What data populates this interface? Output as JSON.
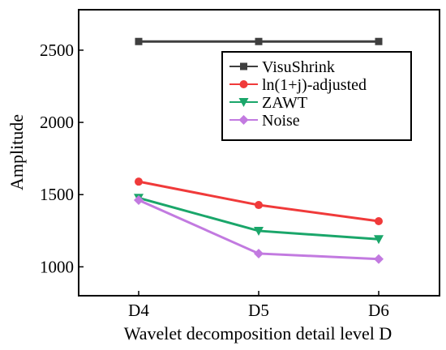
{
  "chart_data": {
    "type": "line",
    "title": "",
    "xlabel": "Wavelet decomposition detail level  D",
    "ylabel": "Amplitude",
    "categories": [
      "D4",
      "D5",
      "D6"
    ],
    "ylim": [
      800,
      2780
    ],
    "yticks": [
      1000,
      1500,
      2000,
      2500
    ],
    "grid": false,
    "legend_position": "top-right",
    "series": [
      {
        "name": "VisuShrink",
        "values": [
          2560,
          2560,
          2560
        ],
        "color": "#3f3f3f",
        "marker": "square"
      },
      {
        "name": "ln(1+j)-adjusted",
        "values": [
          1590,
          1428,
          1316
        ],
        "color": "#f03a3a",
        "marker": "circle"
      },
      {
        "name": "ZAWT",
        "values": [
          1477,
          1249,
          1191
        ],
        "color": "#1aa66a",
        "marker": "triangle-down"
      },
      {
        "name": "Noise",
        "values": [
          1462,
          1092,
          1054
        ],
        "color": "#c27ae0",
        "marker": "diamond"
      }
    ]
  }
}
